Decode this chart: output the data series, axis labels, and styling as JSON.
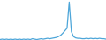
{
  "x": [
    0,
    1,
    2,
    3,
    4,
    5,
    6,
    7,
    8,
    9,
    10,
    11,
    12,
    13,
    14,
    15,
    16,
    17,
    18,
    19,
    20,
    21,
    22,
    23,
    24,
    25,
    26,
    27,
    28,
    29,
    30,
    31,
    32,
    33,
    34,
    35,
    36,
    37,
    38,
    39,
    40,
    41,
    42,
    43,
    44,
    45,
    46,
    47,
    48,
    49
  ],
  "y": [
    1,
    2,
    1,
    2,
    1,
    2,
    1,
    2,
    1,
    2,
    1,
    2,
    1,
    2,
    1,
    3,
    2,
    1,
    2,
    3,
    2,
    3,
    4,
    3,
    4,
    5,
    6,
    8,
    11,
    16,
    22,
    28,
    90,
    20,
    8,
    5,
    4,
    4,
    3,
    3,
    4,
    3,
    4,
    3,
    4,
    3,
    4,
    3,
    3,
    2
  ],
  "line_color": "#4da6d9",
  "background_color": "#ffffff",
  "ylim": [
    0,
    95
  ],
  "xlim": [
    0,
    49
  ],
  "linewidth": 0.9
}
